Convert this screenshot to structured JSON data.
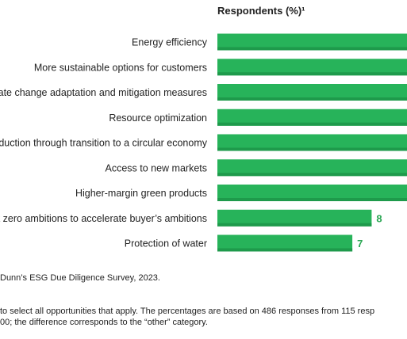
{
  "chart_data": {
    "type": "bar",
    "orientation": "horizontal",
    "column_header": "Respondents (%)¹",
    "categories": [
      "Energy efficiency",
      "More sustainable options for customers",
      "ate change adaptation and mitigation measures",
      "Resource optimization",
      "duction through transition to a circular economy",
      "Access to new markets",
      "Higher-margin green products",
      "t zero ambitions to accelerate buyer’s ambitions",
      "Protection of water"
    ],
    "values": [
      null,
      null,
      null,
      null,
      null,
      null,
      null,
      8,
      7
    ],
    "value_labels": [
      "",
      "",
      "",
      "",
      "",
      "",
      "",
      "8",
      "7"
    ],
    "bar_color": "#27b35a",
    "label_color": "#2aa653",
    "grid": false,
    "legend": "none"
  },
  "footnotes": {
    "source": "Dunn’s ESG Due Diligence Survey, 2023.",
    "note_line1": " to select all opportunities that apply. The percentages are based on 486 responses from 115 resp",
    "note_line2": "00; the difference corresponds to the “other” category."
  }
}
